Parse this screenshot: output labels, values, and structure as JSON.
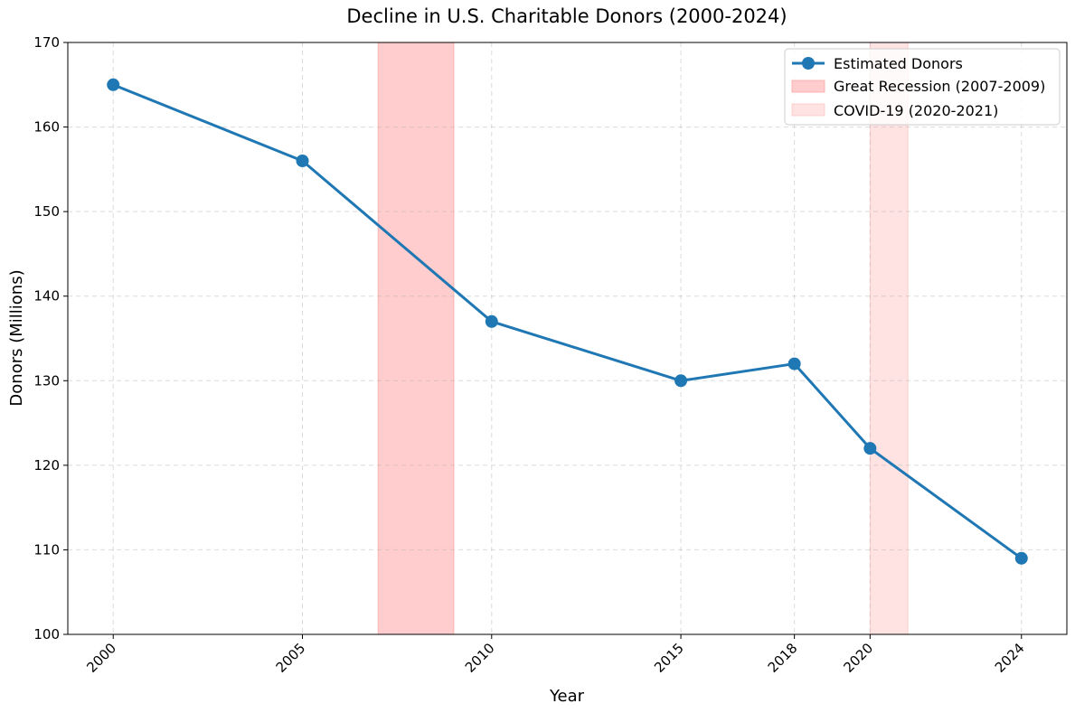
{
  "chart_data": {
    "type": "line",
    "title": "Decline in U.S. Charitable Donors (2000-2024)",
    "xlabel": "Year",
    "ylabel": "Donors (Millions)",
    "xlim": [
      1998.8,
      2025.2
    ],
    "ylim": [
      100,
      170
    ],
    "xticks": [
      2000,
      2005,
      2010,
      2015,
      2018,
      2020,
      2024
    ],
    "yticks": [
      100,
      110,
      120,
      130,
      140,
      150,
      160,
      170
    ],
    "grid": true,
    "legend_position": "top-right",
    "series": [
      {
        "name": "Estimated Donors",
        "color": "#1f77b4",
        "x": [
          2000,
          2005,
          2010,
          2015,
          2018,
          2020,
          2024
        ],
        "y": [
          165,
          156,
          137,
          130,
          132,
          122,
          109
        ]
      }
    ],
    "shaded_regions": [
      {
        "name": "Great Recession (2007-2009)",
        "x_start": 2007,
        "x_end": 2009,
        "color": "#ff9c9c",
        "opacity": 0.5
      },
      {
        "name": "COVID-19 (2020-2021)",
        "x_start": 2020,
        "x_end": 2021,
        "color": "#ffb8b8",
        "opacity": 0.4
      }
    ]
  }
}
